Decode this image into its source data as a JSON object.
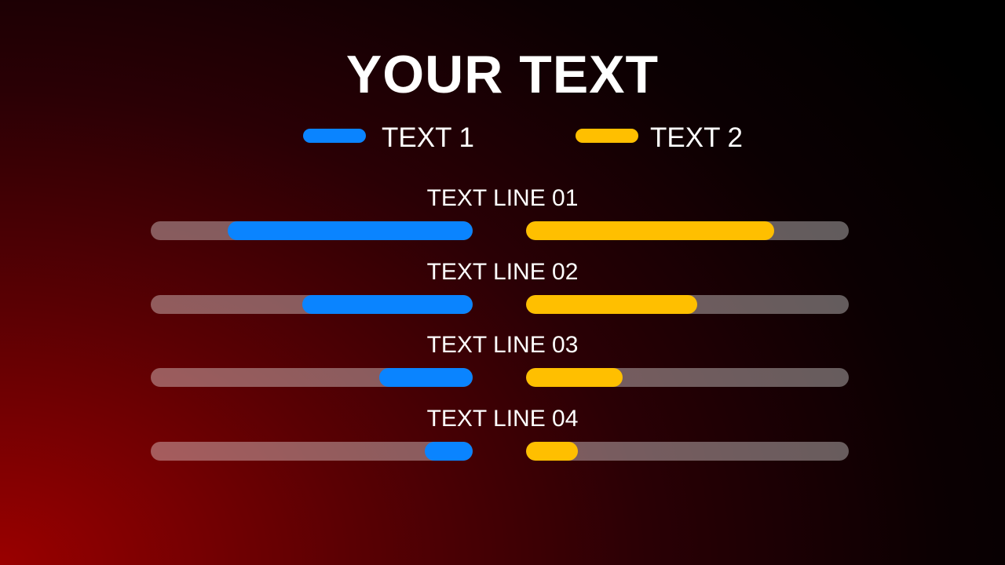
{
  "chart_data": {
    "type": "bar",
    "title": "YOUR TEXT",
    "orientation": "horizontal-butterfly",
    "categories": [
      "TEXT LINE 01",
      "TEXT LINE 02",
      "TEXT LINE 03",
      "TEXT LINE 04"
    ],
    "series": [
      {
        "name": "TEXT 1",
        "color": "#0a84ff",
        "values": [
          76,
          53,
          29,
          15
        ]
      },
      {
        "name": "TEXT 2",
        "color": "#ffbf00",
        "values": [
          77,
          53,
          30,
          16
        ]
      }
    ],
    "ylim": [
      0,
      100
    ],
    "value_unit": "percent of track",
    "legend": "top",
    "grid": false
  },
  "colors": {
    "track": "rgba(255,255,255,0.36)"
  }
}
